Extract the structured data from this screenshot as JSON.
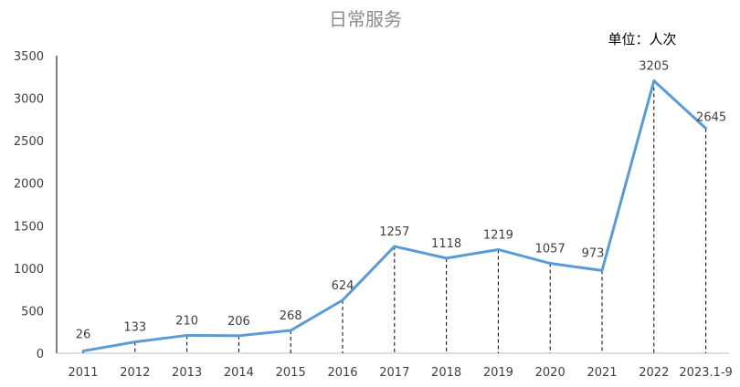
{
  "chart_data": {
    "type": "line",
    "title": "日常服务",
    "unit_label": "单位：人次",
    "categories": [
      "2011",
      "2012",
      "2013",
      "2014",
      "2015",
      "2016",
      "2017",
      "2018",
      "2019",
      "2020",
      "2021",
      "2022",
      "2023.1-9"
    ],
    "values": [
      26,
      133,
      210,
      206,
      268,
      624,
      1257,
      1118,
      1219,
      1057,
      973,
      3205,
      2645
    ],
    "ylim": [
      0,
      3500
    ],
    "yticks": [
      0,
      500,
      1000,
      1500,
      2000,
      2500,
      3000,
      3500
    ],
    "ytick_labels": [
      "0",
      "500",
      "1000",
      "1500",
      "2000",
      "2500",
      "3000",
      "3500"
    ],
    "series_color": "#5b9bd5",
    "drop_lines": true,
    "grid": false,
    "legend": "none"
  }
}
